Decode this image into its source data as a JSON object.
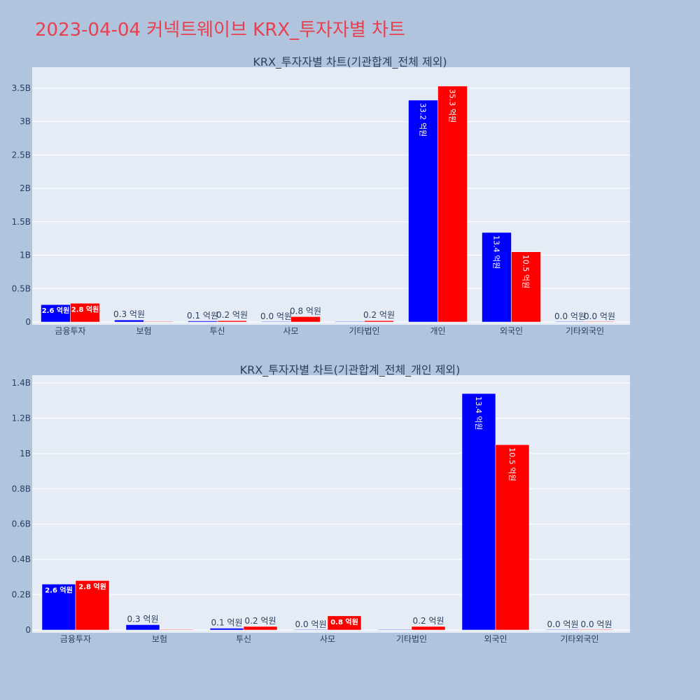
{
  "title": "2023-04-04 커넥트웨이브 KRX_투자자별 차트",
  "colors": {
    "series_a": "#0000ff",
    "series_b": "#ff0000",
    "title": "#e8404f"
  },
  "chart_data": [
    {
      "type": "bar",
      "title": "KRX_투자자별 차트(기관합계_전체 제외)",
      "categories": [
        "금융투자",
        "보험",
        "투신",
        "사모",
        "기타법인",
        "개인",
        "외국인",
        "기타외국인"
      ],
      "ylim": [
        0,
        3.75
      ],
      "yticks": [
        0,
        0.5,
        1,
        1.5,
        2,
        2.5,
        3,
        3.5
      ],
      "ytick_labels": [
        "0",
        "0.5B",
        "1B",
        "1.5B",
        "2B",
        "2.5B",
        "3B",
        "3.5B"
      ],
      "grid": true,
      "series": [
        {
          "values": [
            0.26,
            0.03,
            0.01,
            0.0,
            0.0,
            3.32,
            1.34,
            0.0
          ],
          "labels": [
            "2.6 억원",
            "0.3 억원",
            "0.1 억원",
            "0.0 억원",
            "",
            "33.2 억원",
            "13.4 억원",
            "0.0 억원"
          ]
        },
        {
          "values": [
            0.28,
            0.0,
            0.02,
            0.08,
            0.02,
            3.53,
            1.05,
            0.0
          ],
          "labels": [
            "2.8 억원",
            "",
            "0.2 억원",
            "0.8 억원",
            "0.2 억원",
            "35.3 억원",
            "10.5 억원",
            "0.0 억원"
          ]
        }
      ]
    },
    {
      "type": "bar",
      "title": "KRX_투자자별 차트(기관합계_전체_개인 제외)",
      "categories": [
        "금융투자",
        "보험",
        "투신",
        "사모",
        "기타법인",
        "외국인",
        "기타외국인"
      ],
      "ylim": [
        0,
        1.42
      ],
      "yticks": [
        0,
        0.2,
        0.4,
        0.6,
        0.8,
        1.0,
        1.2,
        1.4
      ],
      "ytick_labels": [
        "0",
        "0.2B",
        "0.4B",
        "0.6B",
        "0.8B",
        "1B",
        "1.2B",
        "1.4B"
      ],
      "grid": true,
      "series": [
        {
          "values": [
            0.26,
            0.03,
            0.01,
            0.0,
            0.0,
            1.34,
            0.0
          ],
          "labels": [
            "2.6 억원",
            "0.3 억원",
            "0.1 억원",
            "0.0 억원",
            "",
            "13.4 억원",
            "0.0 억원"
          ]
        },
        {
          "values": [
            0.28,
            0.0,
            0.02,
            0.08,
            0.02,
            1.05,
            0.0
          ],
          "labels": [
            "2.8 억원",
            "",
            "0.2 억원",
            "0.8 억원",
            "0.2 억원",
            "10.5 억원",
            "0.0 억원"
          ]
        }
      ]
    }
  ]
}
